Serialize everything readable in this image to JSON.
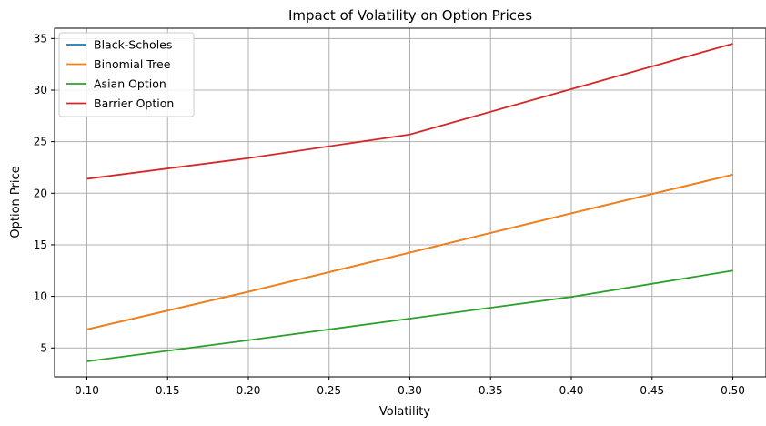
{
  "chart_data": {
    "type": "line",
    "title": "Impact of Volatility on Option Prices",
    "xlabel": "Volatility",
    "ylabel": "Option Price",
    "x": [
      0.1,
      0.2,
      0.3,
      0.4,
      0.5
    ],
    "xlim": [
      0.08,
      0.52
    ],
    "ylim": [
      2.2,
      36.0
    ],
    "xticks": [
      "0.10",
      "0.15",
      "0.20",
      "0.25",
      "0.30",
      "0.35",
      "0.40",
      "0.45",
      "0.50"
    ],
    "yticks": [
      "5",
      "10",
      "15",
      "20",
      "25",
      "30",
      "35"
    ],
    "grid": true,
    "legend_position": "top-left",
    "series": [
      {
        "name": "Black-Scholes",
        "color": "#1f77b4",
        "values": [
          6.8,
          10.45,
          14.25,
          18.05,
          21.8
        ]
      },
      {
        "name": "Binomial Tree",
        "color": "#ff7f0e",
        "values": [
          6.8,
          10.45,
          14.25,
          18.05,
          21.8
        ]
      },
      {
        "name": "Asian Option",
        "color": "#2ca02c",
        "values": [
          3.7,
          5.75,
          7.85,
          9.95,
          12.5
        ]
      },
      {
        "name": "Barrier Option",
        "color": "#d62728",
        "values": [
          21.4,
          23.4,
          25.7,
          30.1,
          34.5
        ]
      }
    ]
  }
}
